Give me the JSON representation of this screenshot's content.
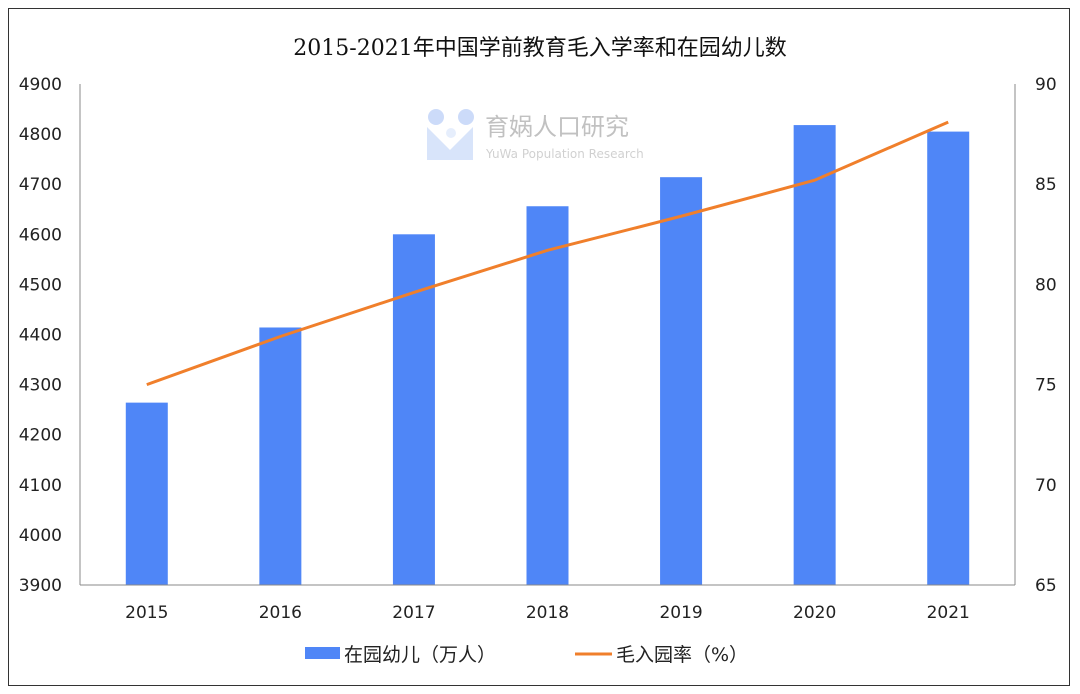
{
  "chart_data": {
    "type": "bar+line",
    "title": "2015-2021年中国学前教育毛入学率和在园幼儿数",
    "categories": [
      "2015",
      "2016",
      "2017",
      "2018",
      "2019",
      "2020",
      "2021"
    ],
    "series": [
      {
        "name": "在园幼儿（万人）",
        "type": "bar",
        "axis": "left",
        "color": "#4f86f7",
        "values": [
          4264,
          4414,
          4600,
          4656,
          4714,
          4818,
          4805
        ]
      },
      {
        "name": "毛入园率（%）",
        "type": "line",
        "axis": "right",
        "color": "#f07f2b",
        "values": [
          75.0,
          77.4,
          79.6,
          81.7,
          83.4,
          85.2,
          88.1
        ]
      }
    ],
    "y_left": {
      "range": [
        3900,
        4900
      ],
      "ticks": [
        "3900",
        "4000",
        "4100",
        "4200",
        "4300",
        "4400",
        "4500",
        "4600",
        "4700",
        "4800",
        "4900"
      ]
    },
    "y_right": {
      "range": [
        65,
        90
      ],
      "ticks": [
        "65",
        "70",
        "75",
        "80",
        "85",
        "90"
      ]
    },
    "grid": false,
    "legend_position": "bottom"
  },
  "watermark": {
    "name": "育娲人口研究",
    "subtitle": "YuWa Population Research"
  }
}
